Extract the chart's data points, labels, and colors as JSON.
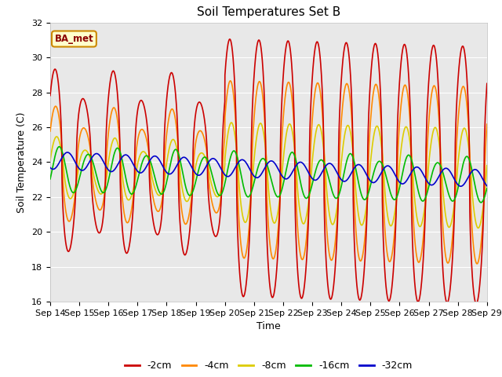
{
  "title": "Soil Temperatures Set B",
  "xlabel": "Time",
  "ylabel": "Soil Temperature (C)",
  "ylim": [
    16,
    32
  ],
  "x_tick_labels": [
    "Sep 14",
    "Sep 15",
    "Sep 16",
    "Sep 17",
    "Sep 18",
    "Sep 19",
    "Sep 20",
    "Sep 21",
    "Sep 22",
    "Sep 23",
    "Sep 24",
    "Sep 25",
    "Sep 26",
    "Sep 27",
    "Sep 28",
    "Sep 29"
  ],
  "yticks": [
    16,
    18,
    20,
    22,
    24,
    26,
    28,
    30,
    32
  ],
  "annotation_text": "BA_met",
  "bg_color": "#e8e8e8",
  "colors": {
    "-2cm": "#cc0000",
    "-4cm": "#ff8800",
    "-8cm": "#ddcc00",
    "-16cm": "#00bb00",
    "-32cm": "#0000cc"
  },
  "legend_labels": [
    "-2cm",
    "-4cm",
    "-8cm",
    "-16cm",
    "-32cm"
  ],
  "title_fontsize": 11,
  "axis_label_fontsize": 9,
  "tick_fontsize": 8,
  "line_width": 1.2
}
